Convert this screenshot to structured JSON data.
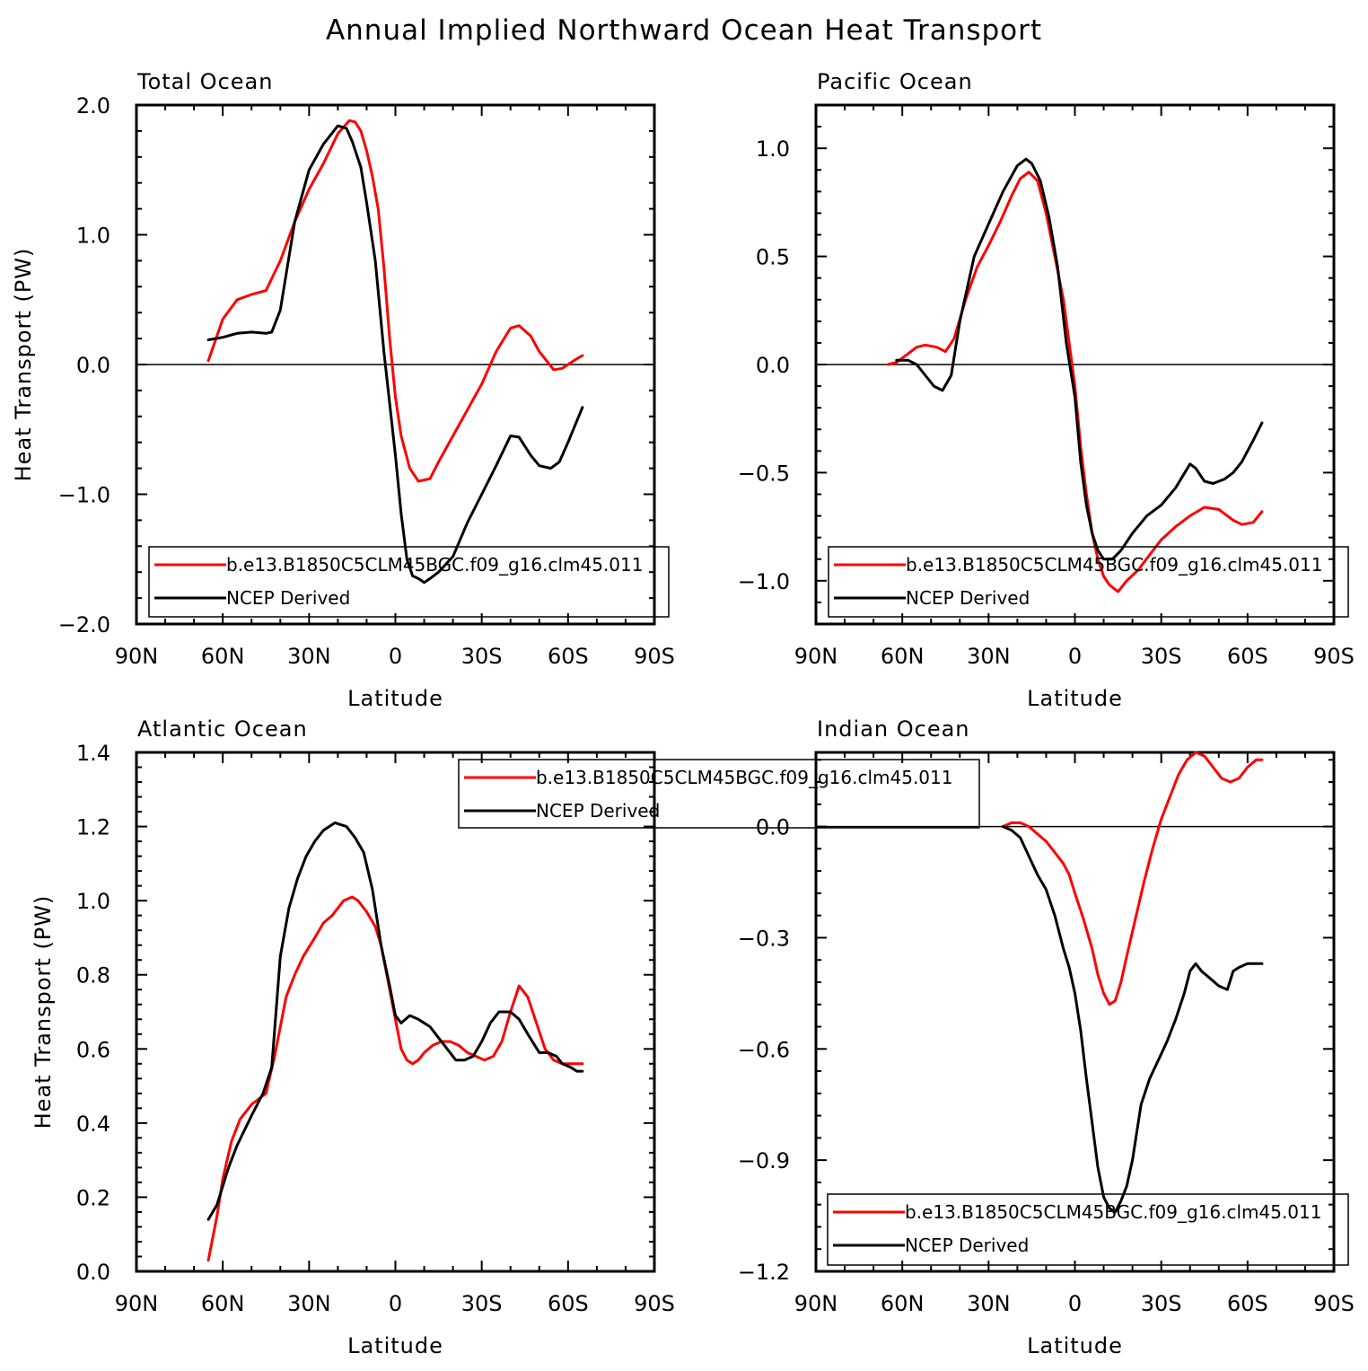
{
  "title": "Annual Implied Northward Ocean Heat Transport",
  "colors": {
    "model": "#ff0000",
    "obs": "#000000",
    "axis": "#000000"
  },
  "chart_data": [
    {
      "type": "line",
      "title": "Total Ocean",
      "xlabel": "Latitude",
      "ylabel": "Heat Transport (PW)",
      "xlim": [
        90,
        -90
      ],
      "ylim": [
        -2.0,
        2.0
      ],
      "xticks": [
        90,
        60,
        30,
        0,
        -30,
        -60,
        -90
      ],
      "xtick_labels": [
        "90N",
        "60N",
        "30N",
        "0",
        "30S",
        "60S",
        "90S"
      ],
      "yticks": [
        -2.0,
        -1.0,
        0.0,
        1.0,
        2.0
      ],
      "ytick_labels": [
        "−2.0",
        "−1.0",
        "0.0",
        "1.0",
        "2.0"
      ],
      "zero_line": true,
      "legend": "bottom",
      "series": [
        {
          "name": "b.e13.B1850C5CLM45BGC.f09_g16.clm45.011",
          "color": "#ff0000",
          "x": [
            65,
            60,
            55,
            50,
            45,
            40,
            35,
            30,
            25,
            20,
            16,
            14,
            12,
            10,
            8,
            6,
            4,
            2,
            0,
            -2,
            -5,
            -8,
            -12,
            -15,
            -20,
            -25,
            -30,
            -35,
            -40,
            -43,
            -47,
            -50,
            -55,
            -58,
            -62,
            -65
          ],
          "y": [
            0.03,
            0.35,
            0.5,
            0.54,
            0.57,
            0.8,
            1.1,
            1.35,
            1.55,
            1.78,
            1.88,
            1.87,
            1.8,
            1.65,
            1.45,
            1.2,
            0.75,
            0.2,
            -0.25,
            -0.55,
            -0.8,
            -0.9,
            -0.88,
            -0.75,
            -0.55,
            -0.35,
            -0.15,
            0.1,
            0.28,
            0.3,
            0.22,
            0.1,
            -0.04,
            -0.03,
            0.03,
            0.07
          ]
        },
        {
          "name": "NCEP Derived",
          "color": "#000000",
          "x": [
            65,
            60,
            55,
            50,
            45,
            43,
            40,
            35,
            30,
            25,
            20,
            17,
            15,
            12,
            10,
            7,
            4,
            2,
            0,
            -2,
            -4,
            -6,
            -8,
            -10,
            -12,
            -15,
            -20,
            -25,
            -30,
            -35,
            -40,
            -43,
            -47,
            -50,
            -54,
            -57,
            -60,
            -65
          ],
          "y": [
            0.19,
            0.21,
            0.24,
            0.25,
            0.24,
            0.25,
            0.42,
            1.1,
            1.5,
            1.7,
            1.84,
            1.82,
            1.72,
            1.52,
            1.25,
            0.8,
            0.1,
            -0.3,
            -0.7,
            -1.15,
            -1.5,
            -1.63,
            -1.65,
            -1.68,
            -1.65,
            -1.6,
            -1.48,
            -1.22,
            -1.0,
            -0.78,
            -0.55,
            -0.56,
            -0.7,
            -0.78,
            -0.8,
            -0.75,
            -0.6,
            -0.33
          ]
        }
      ]
    },
    {
      "type": "line",
      "title": "Pacific Ocean",
      "xlabel": "Latitude",
      "ylabel": "",
      "xlim": [
        90,
        -90
      ],
      "ylim": [
        -1.2,
        1.2
      ],
      "xticks": [
        90,
        60,
        30,
        0,
        -30,
        -60,
        -90
      ],
      "xtick_labels": [
        "90N",
        "60N",
        "30N",
        "0",
        "30S",
        "60S",
        "90S"
      ],
      "yticks": [
        -1.0,
        -0.5,
        0.0,
        0.5,
        1.0
      ],
      "ytick_labels": [
        "−1.0",
        "−0.5",
        "0.0",
        "0.5",
        "1.0"
      ],
      "zero_line": true,
      "legend": "bottom",
      "series": [
        {
          "name": "b.e13.B1850C5CLM45BGC.f09_g16.clm45.011",
          "color": "#ff0000",
          "x": [
            65,
            62,
            58,
            55,
            52,
            48,
            45,
            42,
            38,
            34,
            30,
            26,
            22,
            19,
            16,
            13,
            10,
            7,
            4,
            2,
            0,
            -2,
            -4,
            -6,
            -8,
            -10,
            -12,
            -15,
            -18,
            -22,
            -26,
            -30,
            -35,
            -40,
            -45,
            -50,
            -55,
            -58,
            -62,
            -65
          ],
          "y": [
            0.0,
            0.01,
            0.05,
            0.08,
            0.09,
            0.08,
            0.06,
            0.12,
            0.3,
            0.45,
            0.55,
            0.66,
            0.78,
            0.86,
            0.89,
            0.85,
            0.7,
            0.5,
            0.3,
            0.1,
            -0.1,
            -0.38,
            -0.6,
            -0.78,
            -0.9,
            -0.98,
            -1.02,
            -1.05,
            -1.0,
            -0.95,
            -0.88,
            -0.81,
            -0.75,
            -0.7,
            -0.66,
            -0.67,
            -0.72,
            -0.74,
            -0.73,
            -0.68
          ]
        },
        {
          "name": "NCEP Derived",
          "color": "#000000",
          "x": [
            62,
            58,
            55,
            52,
            49,
            46,
            43,
            40,
            35,
            30,
            25,
            20,
            17,
            15,
            12,
            9,
            6,
            3,
            0,
            -2,
            -4,
            -6,
            -8,
            -10,
            -13,
            -16,
            -20,
            -25,
            -30,
            -35,
            -40,
            -42,
            -45,
            -48,
            -52,
            -55,
            -58,
            -62,
            -65
          ],
          "y": [
            0.02,
            0.02,
            0.0,
            -0.05,
            -0.1,
            -0.12,
            -0.05,
            0.2,
            0.5,
            0.65,
            0.8,
            0.92,
            0.95,
            0.93,
            0.85,
            0.68,
            0.45,
            0.1,
            -0.15,
            -0.45,
            -0.65,
            -0.78,
            -0.86,
            -0.9,
            -0.9,
            -0.86,
            -0.78,
            -0.7,
            -0.65,
            -0.57,
            -0.46,
            -0.48,
            -0.54,
            -0.55,
            -0.53,
            -0.5,
            -0.45,
            -0.35,
            -0.27
          ]
        }
      ]
    },
    {
      "type": "line",
      "title": "Atlantic Ocean",
      "xlabel": "Latitude",
      "ylabel": "Heat Transport (PW)",
      "xlim": [
        90,
        -90
      ],
      "ylim": [
        0.0,
        1.4
      ],
      "xticks": [
        90,
        60,
        30,
        0,
        -30,
        -60,
        -90
      ],
      "xtick_labels": [
        "90N",
        "60N",
        "30N",
        "0",
        "30S",
        "60S",
        "90S"
      ],
      "yticks": [
        0.0,
        0.2,
        0.4,
        0.6,
        0.8,
        1.0,
        1.2,
        1.4
      ],
      "ytick_labels": [
        "0.0",
        "0.2",
        "0.4",
        "0.6",
        "0.8",
        "1.0",
        "1.2",
        "1.4"
      ],
      "zero_line": false,
      "legend": "top-center",
      "series": [
        {
          "name": "b.e13.B1850C5CLM45BGC.f09_g16.clm45.011",
          "color": "#ff0000",
          "x": [
            65,
            62,
            60,
            57,
            54,
            50,
            45,
            42,
            38,
            35,
            32,
            28,
            25,
            22,
            20,
            18,
            15,
            13,
            10,
            7,
            5,
            3,
            0,
            -2,
            -4,
            -6,
            -8,
            -10,
            -13,
            -16,
            -19,
            -22,
            -25,
            -28,
            -31,
            -34,
            -37,
            -40,
            -43,
            -46,
            -49,
            -52,
            -55,
            -58,
            -61,
            -65
          ],
          "y": [
            0.03,
            0.15,
            0.25,
            0.35,
            0.41,
            0.45,
            0.48,
            0.58,
            0.74,
            0.8,
            0.85,
            0.9,
            0.94,
            0.96,
            0.98,
            1.0,
            1.01,
            1.0,
            0.97,
            0.93,
            0.88,
            0.8,
            0.68,
            0.6,
            0.57,
            0.56,
            0.57,
            0.59,
            0.61,
            0.62,
            0.62,
            0.61,
            0.59,
            0.58,
            0.57,
            0.58,
            0.62,
            0.7,
            0.77,
            0.74,
            0.67,
            0.6,
            0.57,
            0.56,
            0.56,
            0.56
          ]
        },
        {
          "name": "NCEP Derived",
          "color": "#000000",
          "x": [
            65,
            62,
            58,
            55,
            50,
            46,
            43,
            40,
            37,
            34,
            31,
            28,
            25,
            21,
            17,
            14,
            11,
            8,
            5,
            2,
            0,
            -2,
            -5,
            -8,
            -12,
            -15,
            -18,
            -21,
            -24,
            -27,
            -30,
            -33,
            -36,
            -40,
            -43,
            -46,
            -50,
            -53,
            -56,
            -58,
            -61,
            -63,
            -65
          ],
          "y": [
            0.14,
            0.18,
            0.28,
            0.34,
            0.42,
            0.48,
            0.55,
            0.85,
            0.98,
            1.06,
            1.12,
            1.16,
            1.19,
            1.21,
            1.2,
            1.17,
            1.13,
            1.03,
            0.88,
            0.77,
            0.69,
            0.67,
            0.69,
            0.68,
            0.66,
            0.63,
            0.6,
            0.57,
            0.57,
            0.58,
            0.62,
            0.67,
            0.7,
            0.7,
            0.68,
            0.64,
            0.59,
            0.59,
            0.58,
            0.56,
            0.55,
            0.54,
            0.54
          ]
        }
      ]
    },
    {
      "type": "line",
      "title": "Indian Ocean",
      "xlabel": "Latitude",
      "ylabel": "",
      "xlim": [
        90,
        -90
      ],
      "ylim": [
        -1.2,
        0.2
      ],
      "xticks": [
        90,
        60,
        30,
        0,
        -30,
        -60,
        -90
      ],
      "xtick_labels": [
        "90N",
        "60N",
        "30N",
        "0",
        "30S",
        "60S",
        "90S"
      ],
      "yticks": [
        -1.2,
        -0.9,
        -0.6,
        -0.3,
        0.0
      ],
      "ytick_labels": [
        "−1.2",
        "−0.9",
        "−0.6",
        "−0.3",
        "0.0"
      ],
      "zero_line": true,
      "legend": "bottom",
      "series": [
        {
          "name": "b.e13.B1850C5CLM45BGC.f09_g16.clm45.011",
          "color": "#ff0000",
          "x": [
            25,
            22,
            19,
            16,
            13,
            10,
            7,
            4,
            2,
            0,
            -3,
            -6,
            -8,
            -10,
            -12,
            -14,
            -16,
            -18,
            -21,
            -24,
            -27,
            -30,
            -33,
            -36,
            -39,
            -42,
            -45,
            -48,
            -51,
            -54,
            -57,
            -60,
            -63,
            -65
          ],
          "y": [
            0.0,
            0.01,
            0.01,
            0.0,
            -0.02,
            -0.04,
            -0.07,
            -0.1,
            -0.13,
            -0.18,
            -0.25,
            -0.33,
            -0.4,
            -0.45,
            -0.48,
            -0.47,
            -0.42,
            -0.35,
            -0.25,
            -0.15,
            -0.06,
            0.02,
            0.08,
            0.14,
            0.18,
            0.2,
            0.19,
            0.16,
            0.13,
            0.12,
            0.13,
            0.16,
            0.18,
            0.18
          ]
        },
        {
          "name": "NCEP Derived",
          "color": "#000000",
          "x": [
            25,
            22,
            19,
            16,
            13,
            10,
            7,
            4,
            2,
            0,
            -2,
            -4,
            -6,
            -8,
            -10,
            -12,
            -14,
            -16,
            -18,
            -20,
            -23,
            -26,
            -29,
            -32,
            -35,
            -38,
            -40,
            -42,
            -44,
            -47,
            -50,
            -53,
            -55,
            -57,
            -60,
            -62,
            -65
          ],
          "y": [
            0.0,
            -0.01,
            -0.03,
            -0.08,
            -0.13,
            -0.17,
            -0.24,
            -0.33,
            -0.38,
            -0.45,
            -0.55,
            -0.68,
            -0.8,
            -0.92,
            -1.0,
            -1.03,
            -1.04,
            -1.01,
            -0.97,
            -0.9,
            -0.75,
            -0.68,
            -0.63,
            -0.58,
            -0.52,
            -0.45,
            -0.39,
            -0.37,
            -0.39,
            -0.41,
            -0.43,
            -0.44,
            -0.39,
            -0.38,
            -0.37,
            -0.37,
            -0.37
          ]
        }
      ]
    }
  ]
}
